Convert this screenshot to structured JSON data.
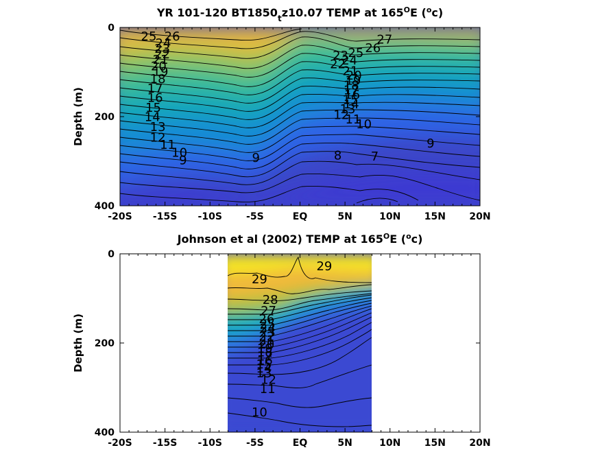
{
  "chart_data": [
    {
      "type": "heatmap",
      "subtype": "filled-contour",
      "title": {
        "main": "YR 101-120 BT1850",
        "sub": "t",
        "rest": "z10.07 TEMP at 165",
        "sup": "O",
        "tail": "E (",
        "unit_sup": "o",
        "unit_end": "c)"
      },
      "ylabel": "Depth (m)",
      "xlabel": "",
      "x_ticks": [
        "-20S",
        "-15S",
        "-10S",
        "-5S",
        "EQ",
        "5N",
        "10N",
        "15N",
        "20N"
      ],
      "x_tick_values": [
        -20,
        -15,
        -10,
        -5,
        0,
        5,
        10,
        15,
        20
      ],
      "y_ticks": [
        "0",
        "200",
        "400"
      ],
      "y_tick_values": [
        0,
        200,
        400
      ],
      "xlim": [
        -20,
        20
      ],
      "ylim": [
        400,
        0
      ],
      "y_reversed": true,
      "colormap": "parula",
      "color_range": [
        6,
        29
      ],
      "grid": false,
      "contour_labels": [
        {
          "text": "25",
          "x": -16.8,
          "y": 20
        },
        {
          "text": "26",
          "x": -14.2,
          "y": 20
        },
        {
          "text": "24",
          "x": -15.2,
          "y": 35
        },
        {
          "text": "23",
          "x": -15.3,
          "y": 48
        },
        {
          "text": "22",
          "x": -15.3,
          "y": 60
        },
        {
          "text": "21",
          "x": -15.5,
          "y": 72
        },
        {
          "text": "20",
          "x": -15.7,
          "y": 87
        },
        {
          "text": "19",
          "x": -15.5,
          "y": 99
        },
        {
          "text": "18",
          "x": -15.8,
          "y": 115
        },
        {
          "text": "17",
          "x": -16.1,
          "y": 137
        },
        {
          "text": "16",
          "x": -16.1,
          "y": 158
        },
        {
          "text": "15",
          "x": -16.3,
          "y": 180
        },
        {
          "text": "14",
          "x": -16.4,
          "y": 201
        },
        {
          "text": "13",
          "x": -15.8,
          "y": 223
        },
        {
          "text": "12",
          "x": -15.8,
          "y": 247
        },
        {
          "text": "11",
          "x": -14.7,
          "y": 263
        },
        {
          "text": "10",
          "x": -13.4,
          "y": 281
        },
        {
          "text": "9",
          "x": -13.0,
          "y": 298
        },
        {
          "text": "9",
          "x": -4.9,
          "y": 292
        },
        {
          "text": "8",
          "x": 4.2,
          "y": 287
        },
        {
          "text": "7",
          "x": 8.3,
          "y": 289
        },
        {
          "text": "9",
          "x": 14.5,
          "y": 260
        },
        {
          "text": "10",
          "x": 7.1,
          "y": 217
        },
        {
          "text": "11",
          "x": 5.9,
          "y": 206
        },
        {
          "text": "12",
          "x": 4.6,
          "y": 196
        },
        {
          "text": "13",
          "x": 5.3,
          "y": 183
        },
        {
          "text": "14",
          "x": 5.7,
          "y": 172
        },
        {
          "text": "15",
          "x": 5.6,
          "y": 162
        },
        {
          "text": "16",
          "x": 5.8,
          "y": 151
        },
        {
          "text": "17",
          "x": 5.7,
          "y": 141
        },
        {
          "text": "18",
          "x": 5.7,
          "y": 130
        },
        {
          "text": "19",
          "x": 5.9,
          "y": 119
        },
        {
          "text": "20",
          "x": 6.0,
          "y": 108
        },
        {
          "text": "21",
          "x": 5.6,
          "y": 98
        },
        {
          "text": "22",
          "x": 4.2,
          "y": 82
        },
        {
          "text": "23",
          "x": 4.5,
          "y": 63
        },
        {
          "text": "24",
          "x": 5.5,
          "y": 74
        },
        {
          "text": "25",
          "x": 6.2,
          "y": 57
        },
        {
          "text": "26",
          "x": 8.1,
          "y": 46
        },
        {
          "text": "27",
          "x": 9.4,
          "y": 27
        }
      ]
    },
    {
      "type": "heatmap",
      "subtype": "filled-contour",
      "title": {
        "main": "Johnson et al (2002) TEMP at 165",
        "sup": "O",
        "tail": "E (",
        "unit_sup": "o",
        "unit_end": "c)"
      },
      "ylabel": "Depth (m)",
      "xlabel": "",
      "x_ticks": [
        "-20S",
        "-15S",
        "-10S",
        "-5S",
        "EQ",
        "5N",
        "10N",
        "15N",
        "20N"
      ],
      "x_tick_values": [
        -20,
        -15,
        -10,
        -5,
        0,
        5,
        10,
        15,
        20
      ],
      "y_ticks": [
        "0",
        "200",
        "400"
      ],
      "y_tick_values": [
        0,
        200,
        400
      ],
      "xlim": [
        -20,
        20
      ],
      "ylim": [
        400,
        0
      ],
      "y_reversed": true,
      "data_x_range": [
        -8,
        8
      ],
      "colormap": "parula",
      "color_range": [
        6,
        29
      ],
      "grid": false,
      "contour_labels": [
        {
          "text": "29",
          "x": 2.7,
          "y": 28
        },
        {
          "text": "29",
          "x": -4.5,
          "y": 57
        },
        {
          "text": "28",
          "x": -3.3,
          "y": 103
        },
        {
          "text": "27",
          "x": -3.5,
          "y": 128
        },
        {
          "text": "26",
          "x": -3.7,
          "y": 146
        },
        {
          "text": "25",
          "x": -3.6,
          "y": 158
        },
        {
          "text": "24",
          "x": -3.6,
          "y": 167
        },
        {
          "text": "23",
          "x": -3.6,
          "y": 176
        },
        {
          "text": "22",
          "x": -3.7,
          "y": 185
        },
        {
          "text": "21",
          "x": -3.7,
          "y": 194
        },
        {
          "text": "20",
          "x": -3.7,
          "y": 203
        },
        {
          "text": "19",
          "x": -3.9,
          "y": 212
        },
        {
          "text": "18",
          "x": -3.9,
          "y": 221
        },
        {
          "text": "17",
          "x": -3.9,
          "y": 230
        },
        {
          "text": "16",
          "x": -3.9,
          "y": 239
        },
        {
          "text": "15",
          "x": -4.0,
          "y": 248
        },
        {
          "text": "14",
          "x": -4.0,
          "y": 257
        },
        {
          "text": "13",
          "x": -4.0,
          "y": 268
        },
        {
          "text": "12",
          "x": -3.5,
          "y": 282
        },
        {
          "text": "11",
          "x": -3.6,
          "y": 303
        },
        {
          "text": "10",
          "x": -4.5,
          "y": 355
        }
      ]
    }
  ]
}
